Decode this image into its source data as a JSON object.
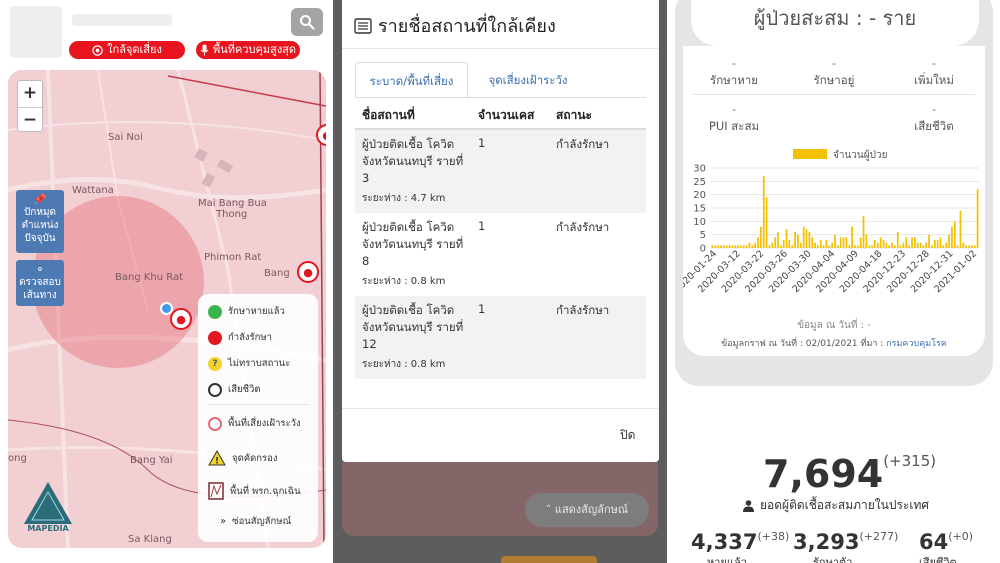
{
  "panel_map": {
    "near_button_label": "ใกล้จุดเสี่ยง",
    "hot_button_label": "พื้นที่ควบคุมสูงสุด",
    "zoom_in": "+",
    "zoom_out": "−",
    "pin_button_label": [
      "ปักหมุด",
      "ตำแหน่ง",
      "ปัจจุบัน"
    ],
    "route_button_label": [
      "ตรวจสอบ",
      "เส้นทาง"
    ],
    "labels": {
      "sai_noi": "Sai Noi",
      "wattana": "Wattana",
      "mai_bang_bua": "Mai Bang Bua",
      "thong": "Thong",
      "phimon_rat": "Phimon Rat",
      "bang_khu_rat": "Bang Khu Rat",
      "bang_right": "Bang",
      "bang_yai": "Bang Yai",
      "sa_klang": "Sa Klang",
      "ong": "ong"
    },
    "legend": {
      "recovered": "รักษาหายแล้ว",
      "treating": "กำลังรักษา",
      "unknown": "ไม่ทราบสถานะ",
      "dead": "เสียชีวิต",
      "risk_area": "พื้นที่เสี่ยงเฝ้าระวัง",
      "screening": "จุดคัดกรอง",
      "emergency": "พื้นที่ พรก.ฉุกเฉิน",
      "hide": "ซ่อนสัญลักษณ์"
    },
    "logo_text": "MAPEDIA",
    "colors": {
      "accent_red": "#e8141e",
      "map_pink": "#f1cfd2",
      "side_button_blue": "#4d7ab3"
    }
  },
  "modal": {
    "title": "รายชื่อสถานที่ใกล้เคียง",
    "tabs": [
      "ระบาด/พื้นที่เสี่ยง",
      "จุดเสี่ยงเฝ้าระวัง"
    ],
    "headers": [
      "ชื่อสถานที่",
      "จำนวนเคส",
      "สถานะ"
    ],
    "rows": [
      {
        "name": "ผู้ป่วยติดเชื้อ โควิด จังหวัดนนทบุรี รายที่ 3",
        "distance": "ระยะห่าง : 4.7 km",
        "count": "1",
        "status": "กำลังรักษา"
      },
      {
        "name": "ผู้ป่วยติดเชื้อ โควิด จังหวัดนนทบุรี รายที่ 8",
        "distance": "ระยะห่าง : 0.8 km",
        "count": "1",
        "status": "กำลังรักษา"
      },
      {
        "name": "ผู้ป่วยติดเชื้อ โควิด จังหวัดนนทบุรี รายที่ 12",
        "distance": "ระยะห่าง : 0.8 km",
        "count": "1",
        "status": "กำลังรักษา"
      }
    ],
    "close_label": "ปิด",
    "show_symbols_label": "แสดงสัญลักษณ์"
  },
  "stats": {
    "total_title": "ผู้ป่วยสะสม : - ราย",
    "items": [
      {
        "value": "-",
        "label": "รักษาหาย"
      },
      {
        "value": "-",
        "label": "รักษาอยู่"
      },
      {
        "value": "-",
        "label": "เพิ่มใหม่"
      },
      {
        "value": "-",
        "label": "PUI สะสม"
      },
      {
        "value": "-",
        "label": "เสียชีวิต"
      }
    ],
    "data_date": "ข้อมูล ณ วันที่ : -",
    "graph_source_prefix": "ข้อมูลกราฟ ณ วันที่ : 02/01/2021 ที่มา :",
    "graph_source_link": "กรมควบคุมโรค",
    "national_total": "7,694",
    "national_total_delta": "(+315)",
    "national_label": "ยอดผู้ติดเชื้อสะสมภายในประเทศ",
    "recovered_value": "4,337",
    "recovered_delta": "(+38)",
    "recovered_label": "หายแล้ว",
    "treating_value": "3,293",
    "treating_delta": "(+277)",
    "treating_label": "รักษาตัว",
    "deaths_value": "64",
    "deaths_delta": "(+0)",
    "deaths_label": "เสียชีวิต"
  },
  "chart_data": {
    "type": "bar",
    "legend": "จำนวนผู้ป่วย",
    "color": "#f2c200",
    "ylim": [
      0,
      30
    ],
    "yticks": [
      0,
      5,
      10,
      15,
      20,
      25,
      30
    ],
    "xticks": [
      "2020-01-24",
      "2020-03-12",
      "2020-03-22",
      "2020-03-26",
      "2020-03-30",
      "2020-04-04",
      "2020-04-09",
      "2020-04-18",
      "2020-12-23",
      "2020-12-28",
      "2020-12-31",
      "2021-01-02"
    ],
    "values": [
      1,
      1,
      1,
      1,
      1,
      1,
      1,
      1,
      1,
      1,
      1,
      1,
      1,
      2,
      1,
      2,
      4,
      8,
      27,
      19,
      1,
      2,
      4,
      6,
      1,
      3,
      7,
      3,
      1,
      6,
      5,
      2,
      8,
      7,
      6,
      4,
      2,
      1,
      3,
      1,
      3,
      1,
      2,
      5,
      1,
      4,
      4,
      4,
      1,
      8,
      1,
      1,
      4,
      12,
      5,
      1,
      1,
      3,
      2,
      4,
      3,
      2,
      1,
      2,
      1,
      6,
      1,
      2,
      4,
      1,
      4,
      4,
      2,
      2,
      1,
      2,
      5,
      1,
      3,
      3,
      4,
      1,
      2,
      5,
      8,
      10,
      1,
      14,
      2,
      1,
      1,
      1,
      1,
      22
    ]
  }
}
